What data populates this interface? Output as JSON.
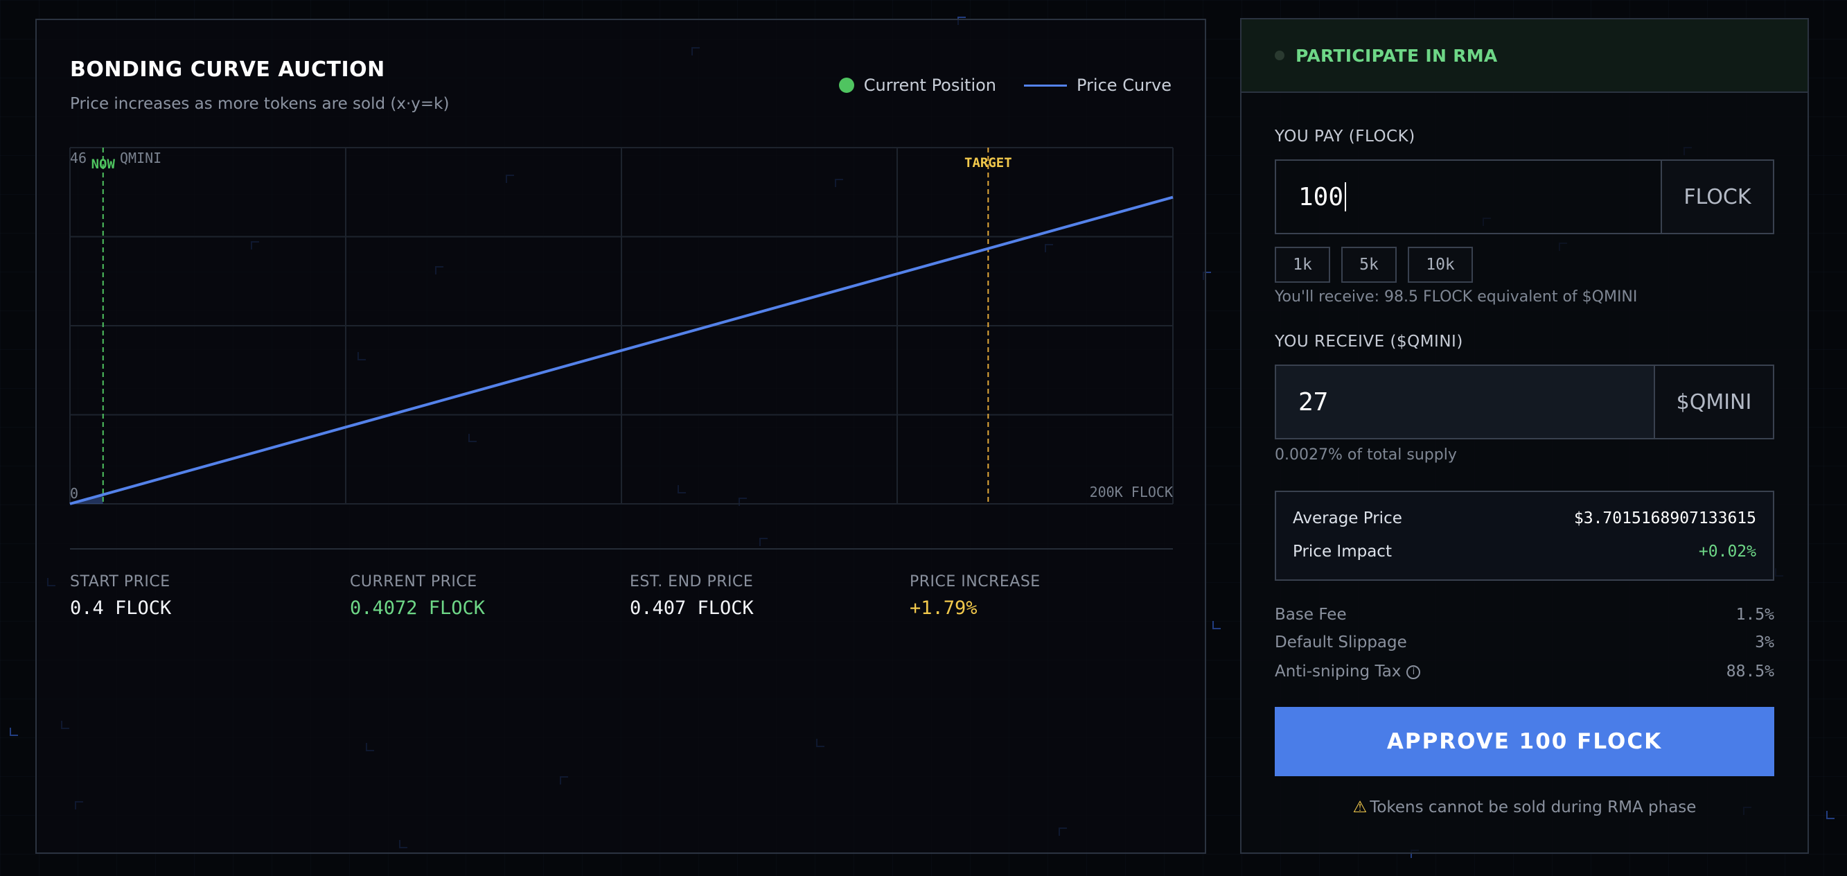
{
  "chart_panel": {
    "title": "BONDING CURVE AUCTION",
    "subtitle": "Price increases as more tokens are sold (x·y=k)",
    "legend": {
      "current_position": "Current Position",
      "price_curve": "Price Curve"
    },
    "stats": [
      {
        "label": "START PRICE",
        "value": "0.4 FLOCK"
      },
      {
        "label": "CURRENT PRICE",
        "value": "0.4072 FLOCK"
      },
      {
        "label": "EST. END PRICE",
        "value": "0.407 FLOCK"
      },
      {
        "label": "PRICE INCREASE",
        "value": "+1.79%"
      }
    ]
  },
  "chart_data": {
    "type": "line",
    "title": "BONDING CURVE AUCTION",
    "y_top_label": "46",
    "y_unit_label": "QMINI",
    "y_bottom_label": "0",
    "x_right_label": "200K FLOCK",
    "now_label": "NOW",
    "target_label": "TARGET",
    "grid": true,
    "legend_position": "top-right",
    "xlim": [
      0,
      200000
    ],
    "ylim": [
      0,
      46
    ],
    "series": [
      {
        "name": "Price Curve",
        "x": [
          0,
          200000
        ],
        "y": [
          0,
          39.6
        ]
      }
    ],
    "markers": {
      "now_x": 6000,
      "target_x": 166500
    },
    "colors": {
      "curve": "#5482ea",
      "now": "#4fc460",
      "target": "#e3a93a",
      "grid": "#1d232d"
    }
  },
  "trade_panel": {
    "title": "PARTICIPATE IN RMA",
    "pay_label": "YOU PAY (FLOCK)",
    "pay_value": "100",
    "pay_unit": "FLOCK",
    "quick_amounts": [
      "1k",
      "5k",
      "10k"
    ],
    "receive_hint": "You'll receive: 98.5 FLOCK equivalent of $QMINI",
    "receive_label": "YOU RECEIVE ($QMINI)",
    "receive_value": "27",
    "receive_unit": "$QMINI",
    "supply_hint": "0.0027% of total supply",
    "average_price_label": "Average Price",
    "average_price_value": "$3.7015168907133615",
    "price_impact_label": "Price Impact",
    "price_impact_value": "+0.02%",
    "base_fee_label": "Base Fee",
    "base_fee_value": "1.5%",
    "slippage_label": "Default Slippage",
    "slippage_value": "3%",
    "tax_label": "Anti-sniping Tax",
    "tax_value": "88.5%",
    "approve_label": "APPROVE 100 FLOCK",
    "warning": "Tokens cannot be sold during RMA phase"
  }
}
